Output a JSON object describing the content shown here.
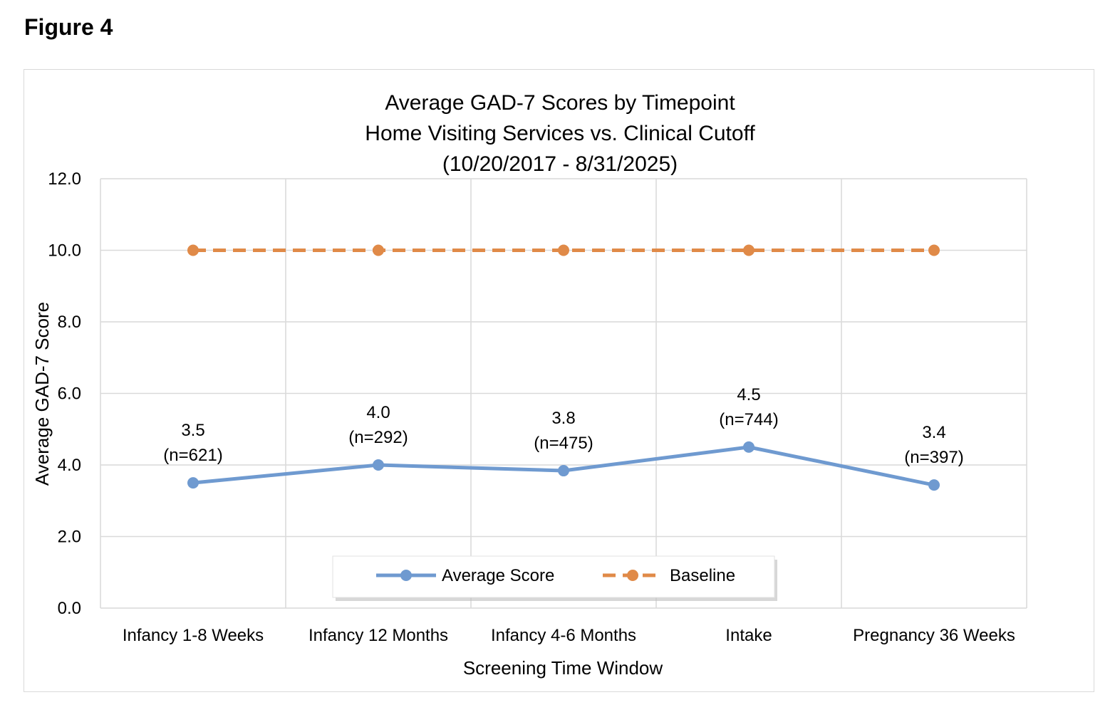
{
  "figure_label": "Figure 4",
  "colors": {
    "average": "#6f9ad0",
    "baseline": "#e08a48",
    "grid": "#d9d9d9"
  },
  "chart_data": {
    "type": "line",
    "title": [
      "Average GAD-7 Scores by Timepoint",
      "Home Visiting Services vs. Clinical Cutoff",
      "(10/20/2017 - 8/31/2025)"
    ],
    "xlabel": "Screening Time Window",
    "ylabel": "Average GAD-7 Score",
    "categories": [
      "Infancy 1-8 Weeks",
      "Infancy 12 Months",
      "Infancy 4-6 Months",
      "Intake",
      "Pregnancy 36 Weeks"
    ],
    "ylim": [
      0,
      12
    ],
    "yticks": [
      "0.0",
      "2.0",
      "4.0",
      "6.0",
      "8.0",
      "10.0",
      "12.0"
    ],
    "grid": true,
    "legend_position": "bottom-center",
    "series": [
      {
        "name": "Average Score",
        "values": [
          3.5,
          4.0,
          3.84,
          4.5,
          3.44
        ],
        "labels": [
          "3.5",
          "4.0",
          "3.8",
          "4.5",
          "3.4"
        ],
        "n_labels": [
          "(n=621)",
          "(n=292)",
          "(n=475)",
          "(n=744)",
          "(n=397)"
        ],
        "style": "solid"
      },
      {
        "name": "Baseline",
        "values": [
          10,
          10,
          10,
          10,
          10
        ],
        "style": "dashed"
      }
    ]
  }
}
